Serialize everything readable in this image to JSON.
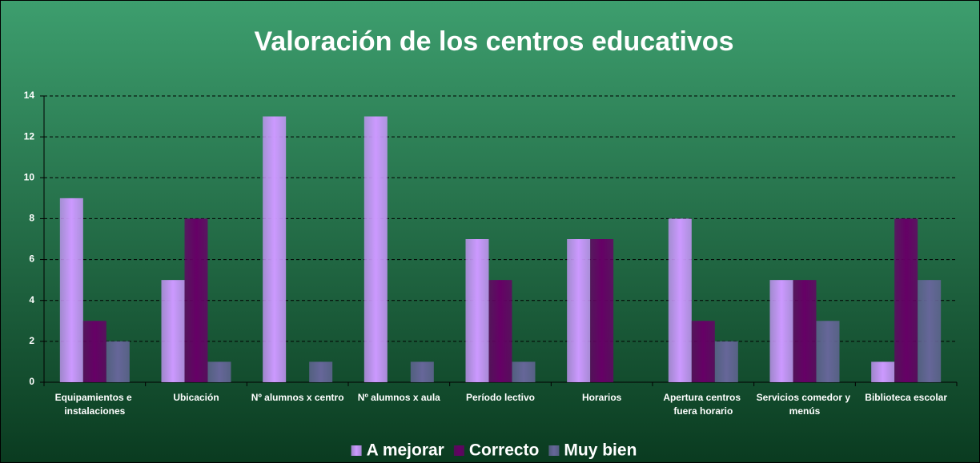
{
  "chart_data": {
    "type": "bar",
    "title": "Valoración de los centros educativos",
    "categories": [
      "Equipamientos e instalaciones",
      "Ubicación",
      "Nº alumnos x centro",
      "Nº alumnos x aula",
      "Período lectivo",
      "Horarios",
      "Apertura centros fuera horario",
      "Servicios comedor y menús",
      "Biblioteca escolar"
    ],
    "series": [
      {
        "name": "A mejorar",
        "color": "#cc99ff",
        "values": [
          9,
          5,
          13,
          13,
          7,
          7,
          8,
          5,
          1
        ]
      },
      {
        "name": "Correcto",
        "color": "#660066",
        "values": [
          3,
          8,
          0,
          0,
          5,
          7,
          3,
          5,
          8
        ]
      },
      {
        "name": "Muy bien",
        "color": "#666699",
        "values": [
          2,
          1,
          1,
          1,
          1,
          0,
          2,
          3,
          5
        ]
      }
    ],
    "ylim": [
      0,
      14
    ],
    "yticks": [
      0,
      2,
      4,
      6,
      8,
      10,
      12,
      14
    ],
    "grid": true,
    "legend": "bottom"
  }
}
